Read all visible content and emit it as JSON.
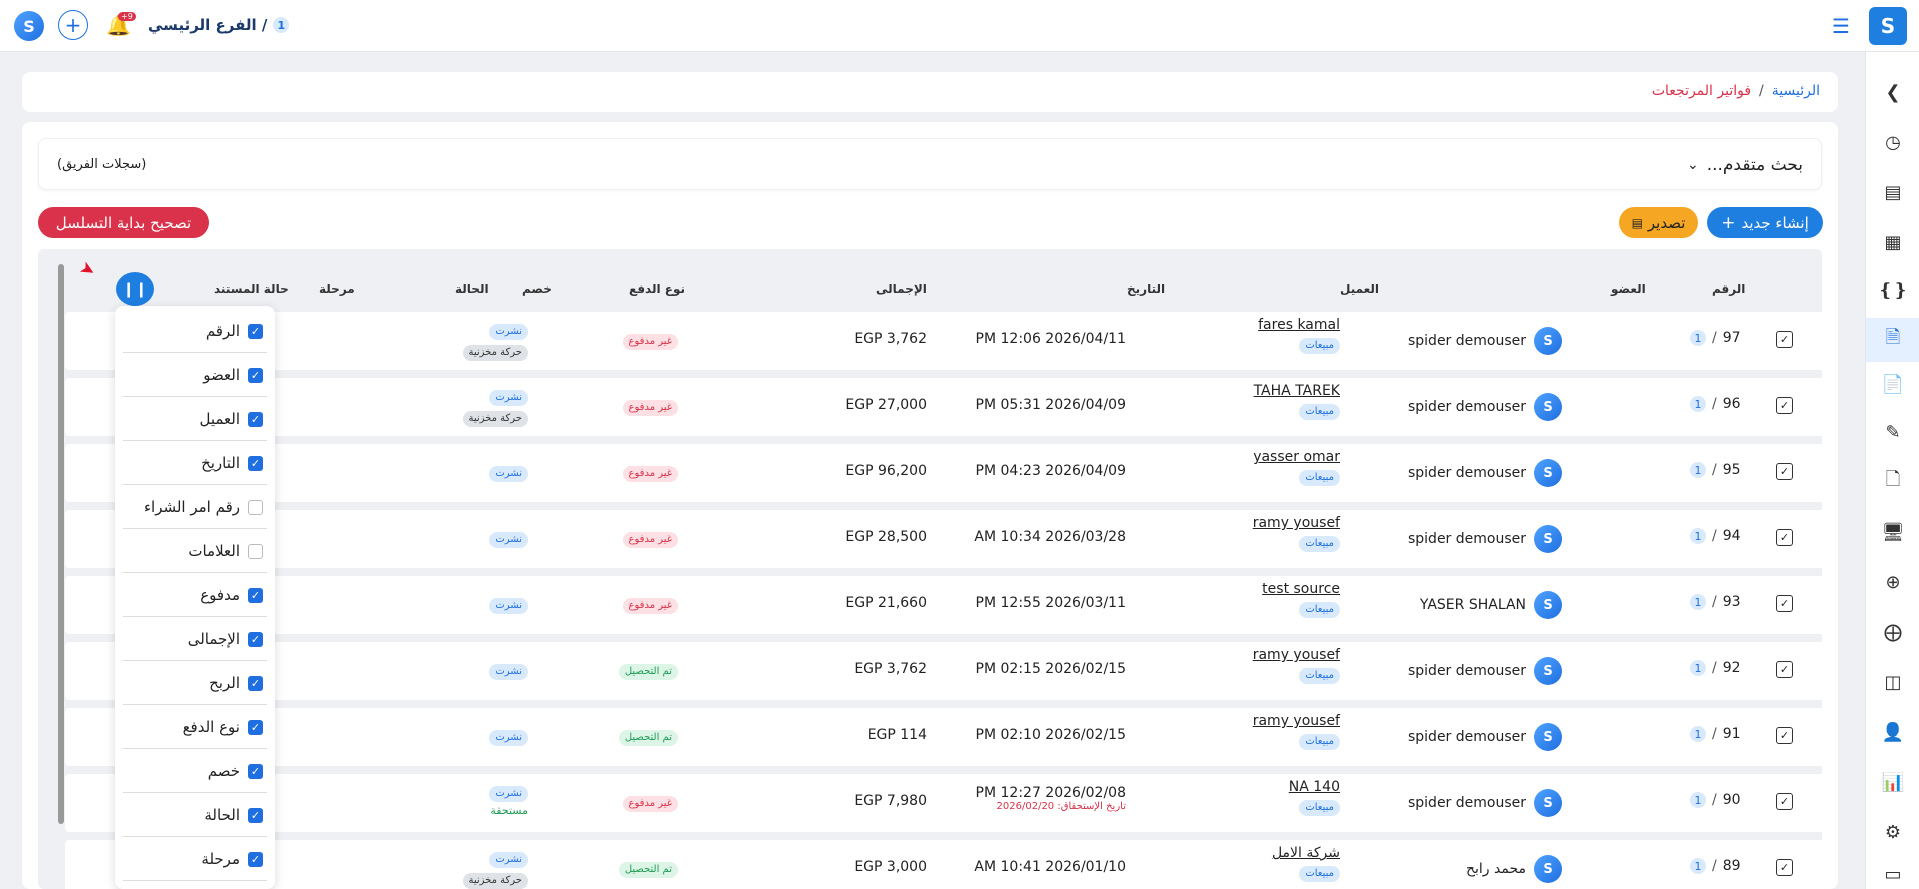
{
  "topbar": {
    "branch_num": "1",
    "branch_name": "الفرع الرئيسي /",
    "notif_count": "+9"
  },
  "breadcrumb": {
    "home": "الرئيسية",
    "sep": "/",
    "current": "فواتير المرتجعات"
  },
  "search": {
    "label": "بحث متقدم...",
    "team": "(سجلات الفريق)"
  },
  "actions": {
    "create": "إنشاء جديد",
    "export": "تصدير",
    "fix_seq": "تصحيح بداية التسلسل"
  },
  "colors": {
    "primary": "#1f7fe0",
    "warning": "#f5a623",
    "danger": "#d9324a"
  },
  "columns": {
    "number": "الرقم",
    "member": "العضو",
    "client": "العميل",
    "date": "التاريخ",
    "total": "الإجمالى",
    "payment": "نوع الدفع",
    "discount": "خصم",
    "status": "الحالة",
    "stage": "مرحلة",
    "doc_status": "حالة المستند"
  },
  "rows": [
    {
      "num": "97",
      "branch": "1",
      "member": "spider demouser",
      "client": "fares kamal",
      "client_tag": "مبيعات",
      "date": "PM 12:06 2026/04/11",
      "due": "",
      "total": "EGP 3,762",
      "payment": "غير مدفوع",
      "pay_kind": "red",
      "status": "نشرت",
      "status2": "حركة مخزنية",
      "status2_kind": "gray"
    },
    {
      "num": "96",
      "branch": "1",
      "member": "spider demouser",
      "client": "TAHA TAREK",
      "client_tag": "مبيعات",
      "date": "PM 05:31 2026/04/09",
      "due": "",
      "total": "EGP 27,000",
      "payment": "غير مدفوع",
      "pay_kind": "red",
      "status": "نشرت",
      "status2": "حركة مخزنية",
      "status2_kind": "gray"
    },
    {
      "num": "95",
      "branch": "1",
      "member": "spider demouser",
      "client": "yasser omar",
      "client_tag": "مبيعات",
      "date": "PM 04:23 2026/04/09",
      "due": "",
      "total": "EGP 96,200",
      "payment": "غير مدفوع",
      "pay_kind": "red",
      "status": "نشرت",
      "status2": "",
      "status2_kind": ""
    },
    {
      "num": "94",
      "branch": "1",
      "member": "spider demouser",
      "client": "ramy yousef",
      "client_tag": "مبيعات",
      "date": "AM 10:34 2026/03/28",
      "due": "",
      "total": "EGP 28,500",
      "payment": "غير مدفوع",
      "pay_kind": "red",
      "status": "نشرت",
      "status2": "",
      "status2_kind": ""
    },
    {
      "num": "93",
      "branch": "1",
      "member": "YASER SHALAN",
      "client": "test source",
      "client_tag": "مبيعات",
      "date": "PM 12:55 2026/03/11",
      "due": "",
      "total": "EGP 21,660",
      "payment": "غير مدفوع",
      "pay_kind": "red",
      "status": "نشرت",
      "status2": "",
      "status2_kind": ""
    },
    {
      "num": "92",
      "branch": "1",
      "member": "spider demouser",
      "client": "ramy yousef",
      "client_tag": "مبيعات",
      "date": "PM 02:15 2026/02/15",
      "due": "",
      "total": "EGP 3,762",
      "payment": "تم التحصيل",
      "pay_kind": "green",
      "status": "نشرت",
      "status2": "",
      "status2_kind": ""
    },
    {
      "num": "91",
      "branch": "1",
      "member": "spider demouser",
      "client": "ramy yousef",
      "client_tag": "مبيعات",
      "date": "PM 02:10 2026/02/15",
      "due": "",
      "total": "EGP 114",
      "payment": "تم التحصيل",
      "pay_kind": "green",
      "status": "نشرت",
      "status2": "",
      "status2_kind": ""
    },
    {
      "num": "90",
      "branch": "1",
      "member": "spider demouser",
      "client": "NA 140",
      "client_tag": "مبيعات",
      "date": "PM 12:27 2026/02/08",
      "due": "تاريخ الإستحقاق: 2026/02/20",
      "total": "EGP 7,980",
      "payment": "غير مدفوع",
      "pay_kind": "red",
      "status": "نشرت",
      "status2": "مستحقة",
      "status2_kind": "text-green"
    },
    {
      "num": "89",
      "branch": "1",
      "member": "محمد رابح",
      "client": "شركة الامل",
      "client_tag": "مبيعات",
      "date": "AM 10:41 2026/01/10",
      "due": "",
      "total": "EGP 3,000",
      "payment": "تم التحصيل",
      "pay_kind": "green",
      "status": "نشرت",
      "status2": "حركة مخزنية",
      "status2_kind": "gray"
    }
  ],
  "column_menu": [
    {
      "label": "الرقم",
      "checked": true
    },
    {
      "label": "العضو",
      "checked": true
    },
    {
      "label": "العميل",
      "checked": true
    },
    {
      "label": "التاريخ",
      "checked": true
    },
    {
      "label": "رقم امر الشراء",
      "checked": false
    },
    {
      "label": "العلامات",
      "checked": false
    },
    {
      "label": "مدفوع",
      "checked": true
    },
    {
      "label": "الإجمالى",
      "checked": true
    },
    {
      "label": "الربح",
      "checked": true
    },
    {
      "label": "نوع الدفع",
      "checked": true
    },
    {
      "label": "خصم",
      "checked": true
    },
    {
      "label": "الحالة",
      "checked": true
    },
    {
      "label": "مرحلة",
      "checked": true
    }
  ]
}
